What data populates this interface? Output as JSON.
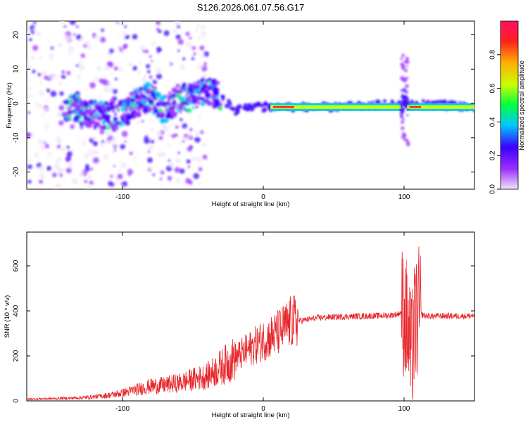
{
  "title": "S126.2026.061.07.56.G17",
  "chart_data": [
    {
      "type": "heatmap",
      "xlabel": "Height of straight line (km)",
      "ylabel": "Frequency (Hz)",
      "xlim": [
        -168,
        150
      ],
      "ylim": [
        -25,
        24
      ],
      "xticks": [
        -100,
        0,
        100
      ],
      "xtick_labels": [
        "-100",
        "0",
        "100"
      ],
      "yticks": [
        -20,
        -10,
        0,
        10,
        20
      ],
      "ytick_labels": [
        "-20",
        "-10",
        "0",
        "10",
        "20"
      ],
      "ridge": [
        {
          "x": -130,
          "y": -3
        },
        {
          "x": -110,
          "y": -4
        },
        {
          "x": -100,
          "y": -3
        },
        {
          "x": -90,
          "y": 0
        },
        {
          "x": -80,
          "y": 2
        },
        {
          "x": -70,
          "y": -2
        },
        {
          "x": -60,
          "y": 1
        },
        {
          "x": -50,
          "y": 2
        },
        {
          "x": -40,
          "y": 4
        },
        {
          "x": -30,
          "y": 2
        },
        {
          "x": -20,
          "y": -2
        },
        {
          "x": -10,
          "y": -1
        },
        {
          "x": 0,
          "y": -1
        },
        {
          "x": 50,
          "y": -1
        },
        {
          "x": 100,
          "y": 0
        },
        {
          "x": 150,
          "y": -1
        }
      ],
      "colorbar": {
        "label": "Normalized spectral amplitude",
        "range": [
          0,
          1
        ],
        "ticks": [
          0.0,
          0.2,
          0.4,
          0.6,
          0.8
        ],
        "tick_labels": [
          "0.0",
          "0.2",
          "0.4",
          "0.6",
          "0.8"
        ],
        "colors": [
          "#f2e6fa",
          "#9b30ff",
          "#3a00ff",
          "#00c8ff",
          "#00ff40",
          "#c8ff00",
          "#ffb000",
          "#ff2020",
          "#ff1060"
        ]
      }
    },
    {
      "type": "line",
      "xlabel": "Height of straight line (km)",
      "ylabel": "SNR (10 * v/v)",
      "xlim": [
        -168,
        150
      ],
      "ylim": [
        0,
        750
      ],
      "xticks": [
        -100,
        0,
        100
      ],
      "xtick_labels": [
        "-100",
        "0",
        "100"
      ],
      "yticks": [
        0,
        200,
        400,
        600
      ],
      "ytick_labels": [
        "0",
        "200",
        "400",
        "600"
      ],
      "color": "#e8262a",
      "series": [
        {
          "name": "SNR",
          "x": [
            -168,
            -150,
            -130,
            -120,
            -110,
            -100,
            -90,
            -80,
            -70,
            -60,
            -50,
            -40,
            -30,
            -20,
            -10,
            0,
            10,
            20,
            30,
            40,
            60,
            80,
            90,
            95,
            100,
            103,
            105,
            108,
            110,
            115,
            120,
            130,
            140,
            150
          ],
          "y": [
            8,
            10,
            14,
            18,
            25,
            35,
            50,
            65,
            70,
            80,
            95,
            110,
            150,
            190,
            230,
            270,
            300,
            350,
            360,
            370,
            375,
            378,
            380,
            385,
            400,
            300,
            180,
            350,
            390,
            378,
            376,
            378,
            377,
            378
          ]
        }
      ]
    }
  ]
}
